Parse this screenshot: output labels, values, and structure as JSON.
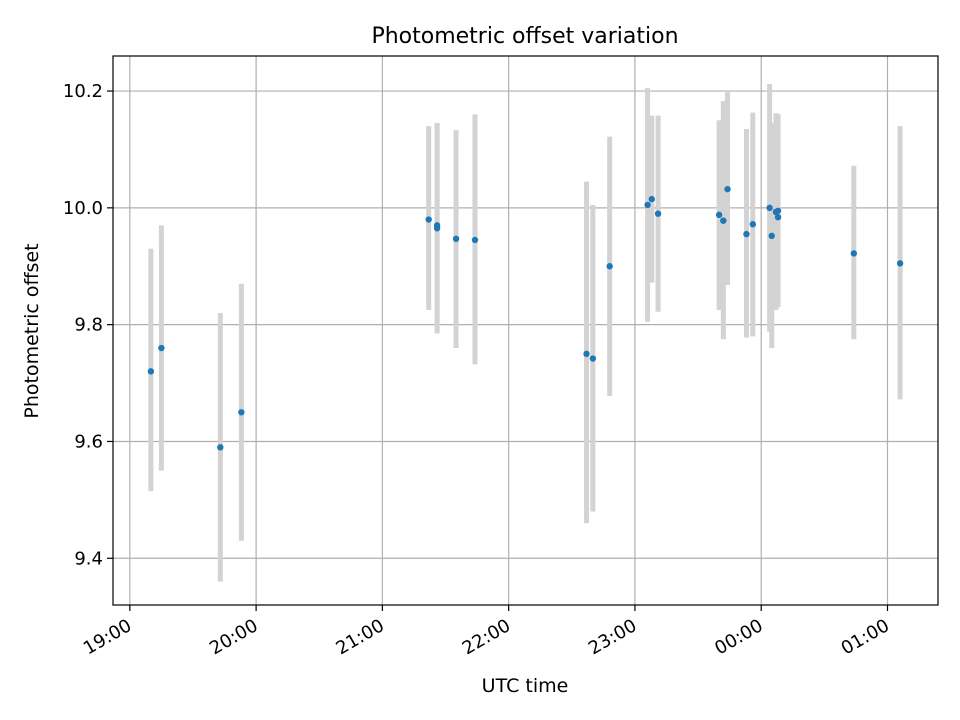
{
  "chart_data": {
    "type": "scatter",
    "title": "Photometric offset variation",
    "xlabel": "UTC time",
    "ylabel": "Photometric offset",
    "xlim": [
      "18:52",
      "01:24"
    ],
    "ylim": [
      9.32,
      10.26
    ],
    "x_ticks": [
      "19:00",
      "20:00",
      "21:00",
      "22:00",
      "23:00",
      "00:00",
      "01:00"
    ],
    "y_ticks": [
      "9.4",
      "9.6",
      "9.8",
      "10.0",
      "10.2"
    ],
    "grid": true,
    "colors": {
      "point": "#1f77b4",
      "errorbar": "#d3d3d3",
      "grid": "#b0b0b0"
    },
    "points": [
      {
        "time": "19:10",
        "y": 9.72,
        "ylo": 9.515,
        "yhi": 9.93
      },
      {
        "time": "19:15",
        "y": 9.76,
        "ylo": 9.55,
        "yhi": 9.97
      },
      {
        "time": "19:43",
        "y": 9.59,
        "ylo": 9.36,
        "yhi": 9.82
      },
      {
        "time": "19:53",
        "y": 9.65,
        "ylo": 9.43,
        "yhi": 9.87
      },
      {
        "time": "21:22",
        "y": 9.98,
        "ylo": 9.825,
        "yhi": 10.14
      },
      {
        "time": "21:26",
        "y": 9.97,
        "ylo": 9.785,
        "yhi": 10.145
      },
      {
        "time": "21:26",
        "y": 9.965,
        "ylo": 9.785,
        "yhi": 10.145
      },
      {
        "time": "21:35",
        "y": 9.947,
        "ylo": 9.76,
        "yhi": 10.133
      },
      {
        "time": "21:44",
        "y": 9.945,
        "ylo": 9.732,
        "yhi": 10.16
      },
      {
        "time": "22:37",
        "y": 9.75,
        "ylo": 9.46,
        "yhi": 10.045
      },
      {
        "time": "22:40",
        "y": 9.742,
        "ylo": 9.48,
        "yhi": 10.005
      },
      {
        "time": "22:48",
        "y": 9.9,
        "ylo": 9.678,
        "yhi": 10.122
      },
      {
        "time": "23:06",
        "y": 10.005,
        "ylo": 9.805,
        "yhi": 10.205
      },
      {
        "time": "23:08",
        "y": 10.015,
        "ylo": 9.872,
        "yhi": 10.158
      },
      {
        "time": "23:11",
        "y": 9.99,
        "ylo": 9.822,
        "yhi": 10.158
      },
      {
        "time": "23:40",
        "y": 9.988,
        "ylo": 9.825,
        "yhi": 10.15
      },
      {
        "time": "23:42",
        "y": 9.978,
        "ylo": 9.775,
        "yhi": 10.183
      },
      {
        "time": "23:44",
        "y": 10.032,
        "ylo": 9.868,
        "yhi": 10.198
      },
      {
        "time": "23:53",
        "y": 9.955,
        "ylo": 9.778,
        "yhi": 10.135
      },
      {
        "time": "23:56",
        "y": 9.972,
        "ylo": 9.78,
        "yhi": 10.163
      },
      {
        "time": "00:04",
        "y": 10.0,
        "ylo": 9.788,
        "yhi": 10.212
      },
      {
        "time": "00:05",
        "y": 9.952,
        "ylo": 9.76,
        "yhi": 10.145
      },
      {
        "time": "00:07",
        "y": 9.993,
        "ylo": 9.825,
        "yhi": 10.162
      },
      {
        "time": "00:08",
        "y": 9.984,
        "ylo": 9.83,
        "yhi": 10.16
      },
      {
        "time": "00:08",
        "y": 9.995,
        "ylo": 9.83,
        "yhi": 10.16
      },
      {
        "time": "00:44",
        "y": 9.922,
        "ylo": 9.775,
        "yhi": 10.072
      },
      {
        "time": "01:06",
        "y": 9.905,
        "ylo": 9.672,
        "yhi": 10.14
      }
    ]
  }
}
